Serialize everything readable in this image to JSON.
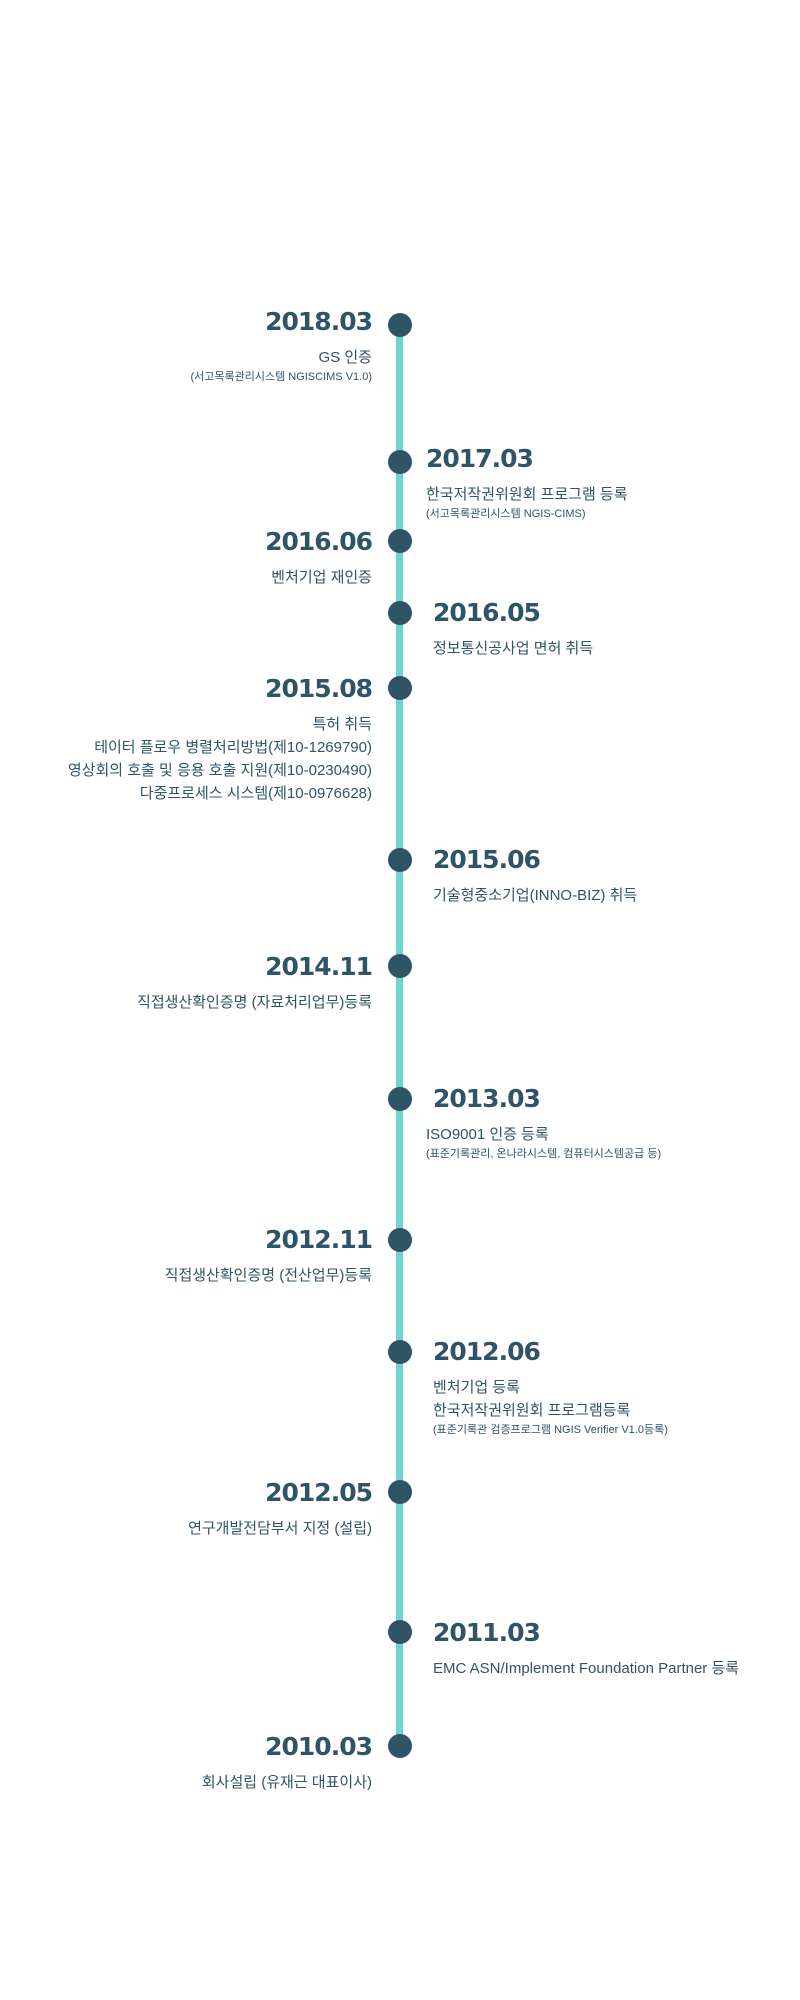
{
  "timeline": [
    {
      "year": "2018.03",
      "lines": [
        "GS 인증"
      ],
      "sub": "(서고목록관리시스템 NGISCIMS V1.0)"
    },
    {
      "year": "2017.03",
      "lines": [
        "한국저작권위원회 프로그램 등록"
      ],
      "sub": "(서고목록관리시스템 NGIS-CIMS)"
    },
    {
      "year": "2016.06",
      "lines": [
        "벤처기업 재인증"
      ]
    },
    {
      "year": "2016.05",
      "lines": [
        "정보통신공사업 면허 취득"
      ]
    },
    {
      "year": "2015.08",
      "lines": [
        "특허 취득",
        "테이터 플로우 병렬처리방법(제10-1269790)",
        "영상회의 호출 및 응용 호출 지원(제10-0230490)",
        "다중프로세스 시스템(제10-0976628)"
      ]
    },
    {
      "year": "2015.06",
      "lines": [
        "기술형중소기업(INNO-BIZ) 취득"
      ]
    },
    {
      "year": "2014.11",
      "lines": [
        "직접생산확인증명 (자료처리업무)등록"
      ]
    },
    {
      "year": "2013.03",
      "lines": [
        "ISO9001 인증 등록"
      ],
      "sub": "(표준기록관리, 온나라시스템, 컴퓨터시스템공급 등)"
    },
    {
      "year": "2012.11",
      "lines": [
        "직접생산확인증명 (전산업무)등록"
      ]
    },
    {
      "year": "2012.06",
      "lines": [
        "벤처기업 등록",
        "한국저작권위원회 프로그램등록"
      ],
      "sub": "(표준기록관 검증프로그램 NGIS Verifier V1.0등록)"
    },
    {
      "year": "2012.05",
      "lines": [
        "연구개발전담부서 지정 (설립)"
      ]
    },
    {
      "year": "2011.03",
      "lines": [
        "EMC ASN/Implement Foundation Partner  등록"
      ]
    },
    {
      "year": "2010.03",
      "lines": [
        "회사설립 (유재근 대표이사)"
      ]
    }
  ]
}
